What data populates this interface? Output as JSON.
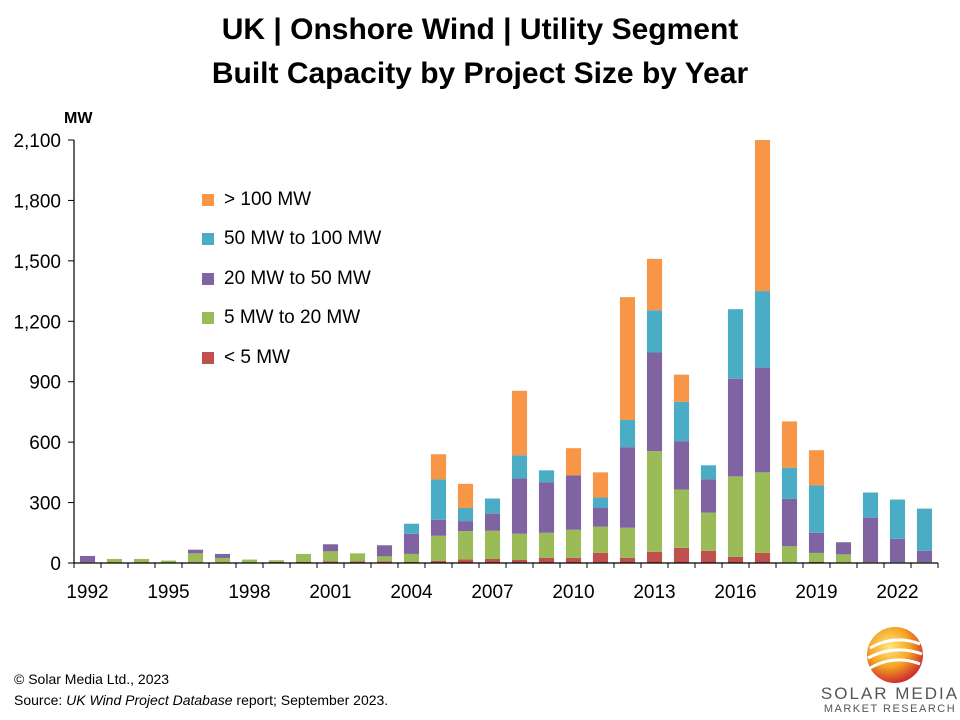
{
  "title_line1": "UK | Onshore Wind | Utility Segment",
  "title_line2": "Built Capacity by Project Size by Year",
  "footer": {
    "copyright": "© Solar Media Ltd., 2023",
    "source_prefix": "Source: ",
    "source_report": "UK Wind Project Database",
    "source_suffix": " report; September 2023."
  },
  "logo": {
    "name": "SOLAR MEDIA",
    "subtitle": "MARKET RESEARCH"
  },
  "chart_data": {
    "type": "bar",
    "stacked": true,
    "unit_label": "MW",
    "ylim": [
      0,
      2100
    ],
    "yticks": [
      0,
      300,
      600,
      900,
      1200,
      1500,
      1800,
      2100
    ],
    "ytick_labels": [
      "0",
      "300",
      "600",
      "900",
      "1,200",
      "1,500",
      "1,800",
      "2,100"
    ],
    "categories": [
      1992,
      1993,
      1994,
      1995,
      1996,
      1997,
      1998,
      1999,
      2000,
      2001,
      2002,
      2003,
      2004,
      2005,
      2006,
      2007,
      2008,
      2009,
      2010,
      2011,
      2012,
      2013,
      2014,
      2015,
      2016,
      2017,
      2018,
      2019,
      2020,
      2021,
      2022,
      2023
    ],
    "xtick_labels": [
      "1992",
      "1995",
      "1998",
      "2001",
      "2004",
      "2007",
      "2010",
      "2013",
      "2016",
      "2019",
      "2022"
    ],
    "legend_placement": "top-left",
    "grid": false,
    "series": [
      {
        "name": "< 5 MW",
        "color": "#c0504d",
        "values": [
          3,
          2,
          2,
          2,
          3,
          3,
          2,
          6,
          5,
          8,
          8,
          8,
          5,
          10,
          18,
          20,
          15,
          25,
          25,
          50,
          25,
          55,
          75,
          60,
          30,
          50,
          3,
          5,
          3,
          3,
          3,
          3
        ]
      },
      {
        "name": "5 MW to 20 MW",
        "color": "#9bbb59",
        "values": [
          2,
          18,
          18,
          10,
          45,
          22,
          15,
          8,
          40,
          50,
          40,
          25,
          40,
          125,
          140,
          140,
          130,
          125,
          140,
          130,
          150,
          500,
          290,
          190,
          400,
          400,
          80,
          45,
          40,
          2,
          2,
          2
        ]
      },
      {
        "name": "20 MW to 50 MW",
        "color": "#8064a2",
        "values": [
          30,
          0,
          0,
          0,
          18,
          20,
          0,
          0,
          0,
          35,
          0,
          55,
          100,
          80,
          50,
          85,
          275,
          250,
          270,
          95,
          400,
          490,
          240,
          165,
          485,
          520,
          235,
          100,
          60,
          220,
          115,
          55
        ]
      },
      {
        "name": "50 MW to 100 MW",
        "color": "#4bacc6",
        "values": [
          0,
          0,
          0,
          0,
          0,
          0,
          0,
          0,
          0,
          0,
          0,
          0,
          50,
          200,
          65,
          75,
          115,
          60,
          0,
          50,
          135,
          210,
          195,
          70,
          345,
          380,
          155,
          235,
          0,
          125,
          195,
          210
        ]
      },
      {
        "name": "> 100 MW",
        "color": "#f79646",
        "values": [
          0,
          0,
          0,
          0,
          0,
          0,
          0,
          0,
          0,
          0,
          0,
          0,
          0,
          125,
          120,
          0,
          320,
          0,
          135,
          125,
          610,
          255,
          135,
          0,
          0,
          750,
          230,
          175,
          0,
          0,
          0,
          0
        ]
      }
    ]
  }
}
